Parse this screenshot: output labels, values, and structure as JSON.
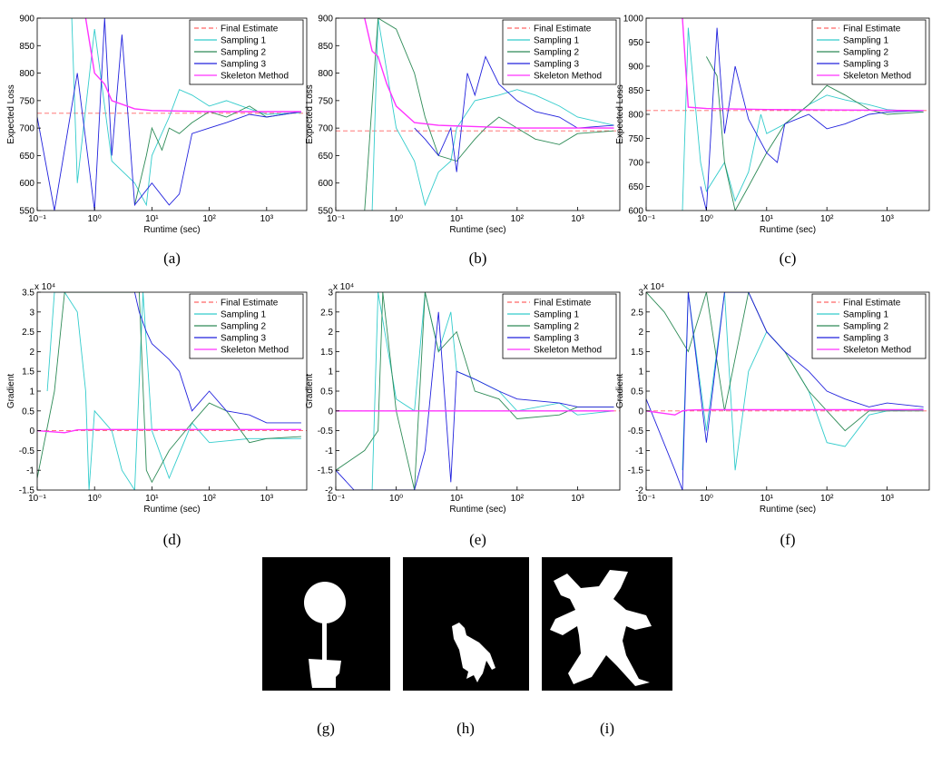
{
  "chart_data": [
    {
      "type": "line",
      "caption": "(a)",
      "xlabel": "Runtime (sec)",
      "ylabel": "Expected Loss",
      "log_x": true,
      "legend": "upper right",
      "xlim": [
        0.1,
        5000
      ],
      "xticks": [
        {
          "value": 0.1,
          "label": "10⁻¹"
        },
        {
          "value": 1,
          "label": "10⁰"
        },
        {
          "value": 10,
          "label": "10¹"
        },
        {
          "value": 100,
          "label": "10²"
        },
        {
          "value": 1000,
          "label": "10³"
        }
      ],
      "ylim": [
        550,
        900
      ],
      "yticks": [
        550,
        600,
        650,
        700,
        750,
        800,
        850,
        900
      ],
      "series": [
        {
          "name": "Final Estimate",
          "color": "#ff6666",
          "style": "dashed",
          "x": [
            0.1,
            5000
          ],
          "values": [
            727,
            727
          ]
        },
        {
          "name": "Sampling 1",
          "color": "#33cccc",
          "x": [
            0.4,
            0.5,
            1,
            2,
            5,
            8,
            10,
            20,
            30,
            50,
            100,
            200,
            500,
            1000,
            4000
          ],
          "values": [
            900,
            600,
            880,
            640,
            600,
            560,
            650,
            720,
            770,
            760,
            740,
            750,
            735,
            725,
            728
          ]
        },
        {
          "name": "Sampling 2",
          "color": "#2e8b57",
          "x": [
            5,
            8,
            10,
            15,
            20,
            30,
            50,
            100,
            200,
            500,
            1000,
            4000
          ],
          "values": [
            560,
            650,
            700,
            660,
            700,
            690,
            710,
            730,
            720,
            740,
            720,
            730
          ]
        },
        {
          "name": "Sampling 3",
          "color": "#2222dd",
          "x": [
            0.1,
            0.2,
            0.5,
            1,
            1.5,
            2,
            3,
            5,
            10,
            20,
            30,
            50,
            100,
            200,
            500,
            1000,
            4000
          ],
          "values": [
            720,
            550,
            800,
            550,
            900,
            650,
            870,
            560,
            600,
            560,
            580,
            690,
            700,
            710,
            725,
            720,
            730
          ]
        },
        {
          "name": "Skeleton Method",
          "color": "#ff33ff",
          "x": [
            0.7,
            1,
            1.5,
            2,
            5,
            10,
            100,
            4000
          ],
          "values": [
            900,
            800,
            780,
            750,
            735,
            732,
            730,
            730
          ]
        }
      ]
    },
    {
      "type": "line",
      "caption": "(b)",
      "xlabel": "Runtime (sec)",
      "ylabel": "Expected Loss",
      "log_x": true,
      "legend": "upper right",
      "xlim": [
        0.1,
        5000
      ],
      "xticks": [
        {
          "value": 0.1,
          "label": "10⁻¹"
        },
        {
          "value": 1,
          "label": "10⁰"
        },
        {
          "value": 10,
          "label": "10¹"
        },
        {
          "value": 100,
          "label": "10²"
        },
        {
          "value": 1000,
          "label": "10³"
        }
      ],
      "ylim": [
        550,
        900
      ],
      "yticks": [
        550,
        600,
        650,
        700,
        750,
        800,
        850,
        900
      ],
      "series": [
        {
          "name": "Final Estimate",
          "color": "#ff6666",
          "style": "dashed",
          "x": [
            0.1,
            5000
          ],
          "values": [
            695,
            695
          ]
        },
        {
          "name": "Sampling 1",
          "color": "#33cccc",
          "x": [
            0.4,
            0.5,
            1,
            2,
            3,
            5,
            8,
            10,
            20,
            50,
            100,
            200,
            500,
            1000,
            4000
          ],
          "values": [
            550,
            900,
            700,
            640,
            560,
            620,
            640,
            700,
            750,
            760,
            770,
            760,
            740,
            720,
            705
          ]
        },
        {
          "name": "Sampling 2",
          "color": "#2e8b57",
          "x": [
            0.3,
            0.5,
            1,
            2,
            3,
            5,
            10,
            20,
            30,
            50,
            100,
            200,
            500,
            1000,
            4000
          ],
          "values": [
            550,
            900,
            880,
            800,
            720,
            650,
            640,
            680,
            700,
            720,
            700,
            680,
            670,
            690,
            695
          ]
        },
        {
          "name": "Sampling 3",
          "color": "#2222dd",
          "x": [
            2,
            3,
            5,
            8,
            10,
            15,
            20,
            30,
            50,
            100,
            200,
            500,
            1000,
            4000
          ],
          "values": [
            700,
            680,
            650,
            700,
            620,
            800,
            760,
            830,
            780,
            750,
            730,
            720,
            700,
            705
          ]
        },
        {
          "name": "Skeleton Method",
          "color": "#ff33ff",
          "x": [
            0.3,
            0.4,
            0.5,
            0.7,
            1,
            2,
            5,
            100,
            4000
          ],
          "values": [
            900,
            840,
            830,
            780,
            740,
            710,
            705,
            700,
            700
          ]
        }
      ]
    },
    {
      "type": "line",
      "caption": "(c)",
      "xlabel": "Runtime (sec)",
      "ylabel": "Expected Loss",
      "log_x": true,
      "legend": "upper right",
      "xlim": [
        0.1,
        5000
      ],
      "xticks": [
        {
          "value": 0.1,
          "label": "10⁻¹"
        },
        {
          "value": 1,
          "label": "10⁰"
        },
        {
          "value": 10,
          "label": "10¹"
        },
        {
          "value": 100,
          "label": "10²"
        },
        {
          "value": 1000,
          "label": "10³"
        }
      ],
      "ylim": [
        600,
        1000
      ],
      "yticks": [
        600,
        650,
        700,
        750,
        800,
        850,
        900,
        950,
        1000
      ],
      "series": [
        {
          "name": "Final Estimate",
          "color": "#ff6666",
          "style": "dashed",
          "x": [
            0.1,
            5000
          ],
          "values": [
            808,
            808
          ]
        },
        {
          "name": "Sampling 1",
          "color": "#33cccc",
          "x": [
            0.4,
            0.5,
            0.8,
            1,
            2,
            3,
            5,
            8,
            10,
            20,
            50,
            100,
            200,
            500,
            1000,
            4000
          ],
          "values": [
            600,
            980,
            700,
            640,
            700,
            620,
            680,
            800,
            760,
            780,
            820,
            840,
            830,
            820,
            810,
            805
          ]
        },
        {
          "name": "Sampling 2",
          "color": "#2e8b57",
          "x": [
            1,
            1.5,
            2,
            3,
            5,
            10,
            20,
            50,
            100,
            200,
            500,
            1000,
            4000
          ],
          "values": [
            920,
            880,
            700,
            600,
            650,
            720,
            780,
            820,
            860,
            840,
            810,
            800,
            805
          ]
        },
        {
          "name": "Sampling 3",
          "color": "#2222dd",
          "x": [
            0.8,
            1,
            1.5,
            2,
            3,
            5,
            10,
            15,
            20,
            50,
            100,
            200,
            500,
            1000,
            4000
          ],
          "values": [
            650,
            600,
            980,
            760,
            900,
            790,
            720,
            700,
            780,
            800,
            770,
            780,
            800,
            805,
            808
          ]
        },
        {
          "name": "Skeleton Method",
          "color": "#ff33ff",
          "x": [
            0.4,
            0.5,
            1,
            10,
            4000
          ],
          "values": [
            1000,
            815,
            812,
            810,
            808
          ]
        }
      ]
    },
    {
      "type": "line",
      "caption": "(d)",
      "xlabel": "Runtime (sec)",
      "ylabel": "Gradient",
      "y_multiplier": "x 10⁴",
      "log_x": true,
      "legend": "upper right",
      "xlim": [
        0.1,
        5000
      ],
      "xticks": [
        {
          "value": 0.1,
          "label": "10⁻¹"
        },
        {
          "value": 1,
          "label": "10⁰"
        },
        {
          "value": 10,
          "label": "10¹"
        },
        {
          "value": 100,
          "label": "10²"
        },
        {
          "value": 1000,
          "label": "10³"
        }
      ],
      "ylim": [
        -1.5,
        3.5
      ],
      "yticks": [
        -1.5,
        -1,
        -0.5,
        0,
        0.5,
        1,
        1.5,
        2,
        2.5,
        3,
        3.5
      ],
      "series": [
        {
          "name": "Final Estimate",
          "color": "#ff6666",
          "style": "dashed",
          "x": [
            0.1,
            5000
          ],
          "values": [
            0,
            0
          ]
        },
        {
          "name": "Sampling 1",
          "color": "#33cccc",
          "x": [
            0.15,
            0.2,
            0.3,
            0.5,
            0.7,
            0.8,
            1,
            2,
            3,
            5,
            7,
            10,
            20,
            50,
            100,
            500,
            1000,
            4000
          ],
          "values": [
            1,
            3.5,
            3.5,
            3,
            1,
            -1.5,
            0.5,
            0,
            -1,
            -1.5,
            3.5,
            0,
            -1.2,
            0.2,
            -0.3,
            -0.2,
            -0.2,
            -0.2
          ]
        },
        {
          "name": "Sampling 2",
          "color": "#2e8b57",
          "x": [
            0.1,
            0.2,
            0.3,
            0.5,
            6,
            8,
            10,
            20,
            50,
            100,
            200,
            500,
            1000,
            4000
          ],
          "values": [
            -1.2,
            1,
            3.5,
            3.5,
            3.5,
            -1,
            -1.3,
            -0.5,
            0.2,
            0.7,
            0.5,
            -0.3,
            -0.2,
            -0.15
          ]
        },
        {
          "name": "Sampling 3",
          "color": "#2222dd",
          "x": [
            5,
            6,
            8,
            10,
            20,
            30,
            50,
            100,
            200,
            500,
            1000,
            4000
          ],
          "values": [
            3.5,
            3,
            2.5,
            2.2,
            1.8,
            1.5,
            0.5,
            1,
            0.5,
            0.4,
            0.2,
            0.2
          ]
        },
        {
          "name": "Skeleton Method",
          "color": "#ff33ff",
          "x": [
            0.1,
            0.3,
            0.5,
            1,
            4000
          ],
          "values": [
            0,
            -0.05,
            0.02,
            0.03,
            0.03
          ]
        }
      ]
    },
    {
      "type": "line",
      "caption": "(e)",
      "xlabel": "Runtime (sec)",
      "ylabel": "Gradient",
      "y_multiplier": "x 10⁴",
      "log_x": true,
      "legend": "upper right",
      "xlim": [
        0.1,
        5000
      ],
      "xticks": [
        {
          "value": 0.1,
          "label": "10⁻¹"
        },
        {
          "value": 1,
          "label": "10⁰"
        },
        {
          "value": 10,
          "label": "10¹"
        },
        {
          "value": 100,
          "label": "10²"
        },
        {
          "value": 1000,
          "label": "10³"
        }
      ],
      "ylim": [
        -2,
        3
      ],
      "yticks": [
        -2,
        -1.5,
        -1,
        -0.5,
        0,
        0.5,
        1,
        1.5,
        2,
        2.5,
        3
      ],
      "series": [
        {
          "name": "Final Estimate",
          "color": "#ff6666",
          "style": "dashed",
          "x": [
            0.1,
            5000
          ],
          "values": [
            0,
            0
          ]
        },
        {
          "name": "Sampling 1",
          "color": "#33cccc",
          "x": [
            0.4,
            0.5,
            1,
            2,
            3,
            5,
            8,
            10,
            20,
            50,
            100,
            500,
            1000,
            4000
          ],
          "values": [
            -2,
            3,
            0.3,
            0,
            3,
            1.5,
            2.5,
            1,
            0.8,
            0.5,
            0,
            0.2,
            -0.1,
            0
          ]
        },
        {
          "name": "Sampling 2",
          "color": "#2e8b57",
          "x": [
            0.1,
            0.3,
            0.5,
            0.6,
            1,
            2,
            3,
            5,
            10,
            20,
            50,
            100,
            500,
            1000,
            4000
          ],
          "values": [
            -1.5,
            -1,
            -0.5,
            3,
            0,
            -2,
            3,
            1.5,
            2,
            0.5,
            0.3,
            -0.2,
            -0.1,
            0.1,
            0.1
          ]
        },
        {
          "name": "Sampling 3",
          "color": "#2222dd",
          "x": [
            0.1,
            0.2,
            2,
            3,
            5,
            8,
            10,
            20,
            50,
            100,
            500,
            1000,
            4000
          ],
          "values": [
            -1.5,
            -2,
            -2,
            -1,
            2.5,
            -1.8,
            1,
            0.8,
            0.5,
            0.3,
            0.2,
            0.1,
            0.1
          ]
        },
        {
          "name": "Skeleton Method",
          "color": "#ff33ff",
          "x": [
            0.1,
            4000
          ],
          "values": [
            0,
            0
          ]
        }
      ]
    },
    {
      "type": "line",
      "caption": "(f)",
      "xlabel": "Runtime (sec)",
      "ylabel": "Gradient",
      "y_multiplier": "x 10⁴",
      "log_x": true,
      "legend": "upper right",
      "xlim": [
        0.1,
        5000
      ],
      "xticks": [
        {
          "value": 0.1,
          "label": "10⁻¹"
        },
        {
          "value": 1,
          "label": "10⁰"
        },
        {
          "value": 10,
          "label": "10¹"
        },
        {
          "value": 100,
          "label": "10²"
        },
        {
          "value": 1000,
          "label": "10³"
        }
      ],
      "ylim": [
        -2,
        3
      ],
      "yticks": [
        -2,
        -1.5,
        -1,
        -0.5,
        0,
        0.5,
        1,
        1.5,
        2,
        2.5,
        3
      ],
      "series": [
        {
          "name": "Final Estimate",
          "color": "#ff6666",
          "style": "dashed",
          "x": [
            0.1,
            5000
          ],
          "values": [
            0,
            0
          ]
        },
        {
          "name": "Sampling 1",
          "color": "#33cccc",
          "x": [
            0.4,
            0.5,
            1,
            2,
            3,
            5,
            10,
            20,
            50,
            100,
            200,
            500,
            1000,
            4000
          ],
          "values": [
            -1.5,
            3,
            -0.5,
            3,
            -1.5,
            1,
            2,
            1.5,
            0.5,
            -0.8,
            -0.9,
            -0.1,
            0,
            0.05
          ]
        },
        {
          "name": "Sampling 2",
          "color": "#2e8b57",
          "x": [
            0.1,
            0.2,
            0.5,
            1,
            2,
            5,
            10,
            20,
            50,
            100,
            200,
            500,
            1000,
            4000
          ],
          "values": [
            3,
            2.5,
            1.5,
            3,
            0,
            3,
            2,
            1.5,
            0.5,
            0,
            -0.5,
            0,
            0,
            0
          ]
        },
        {
          "name": "Sampling 3",
          "color": "#2222dd",
          "x": [
            0.1,
            0.3,
            0.4,
            0.5,
            1,
            2,
            5,
            10,
            20,
            50,
            100,
            200,
            500,
            1000,
            4000
          ],
          "values": [
            0.3,
            -1.5,
            -2,
            3,
            -0.8,
            3,
            3,
            2,
            1.5,
            1,
            0.5,
            0.3,
            0.1,
            0.2,
            0.1
          ]
        },
        {
          "name": "Skeleton Method",
          "color": "#ff33ff",
          "x": [
            0.1,
            0.3,
            0.4,
            0.5,
            1,
            4000
          ],
          "values": [
            0,
            -0.1,
            0,
            0.02,
            0.03,
            0.03
          ]
        }
      ]
    }
  ],
  "figures": [
    {
      "caption": "(g)"
    },
    {
      "caption": "(h)"
    },
    {
      "caption": "(i)"
    }
  ]
}
